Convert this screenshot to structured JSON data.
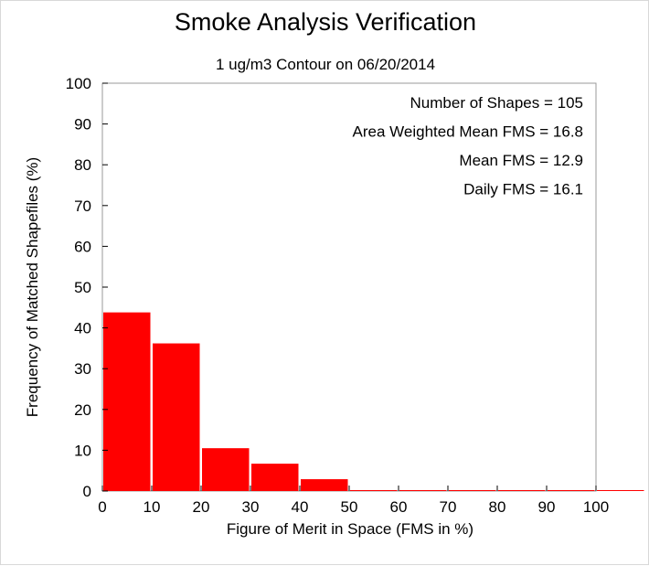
{
  "chart_data": {
    "type": "bar",
    "title": "Smoke Analysis Verification",
    "subtitle": "1 ug/m3 Contour on 06/20/2014",
    "xlabel": "Figure of Merit in Space (FMS in %)",
    "ylabel": "Frequency of Matched Shapefiles (%)",
    "xlim": [
      0,
      100
    ],
    "ylim": [
      0,
      100
    ],
    "xticks": [
      0,
      10,
      20,
      30,
      40,
      50,
      60,
      70,
      80,
      90,
      100
    ],
    "yticks": [
      0,
      10,
      20,
      30,
      40,
      50,
      60,
      70,
      80,
      90,
      100
    ],
    "bins": [
      [
        0,
        10
      ],
      [
        10,
        20
      ],
      [
        20,
        30
      ],
      [
        30,
        40
      ],
      [
        40,
        50
      ],
      [
        50,
        60
      ],
      [
        60,
        70
      ],
      [
        70,
        80
      ],
      [
        80,
        90
      ],
      [
        90,
        100
      ],
      [
        100,
        110
      ]
    ],
    "values": [
      43.8,
      36.2,
      10.5,
      6.7,
      2.9,
      0,
      0,
      0,
      0,
      0,
      0
    ],
    "bar_color": "#ff0000",
    "annotations": [
      "Number of Shapes = 105",
      "Area Weighted Mean FMS = 16.8",
      "Mean FMS = 12.9",
      "Daily FMS = 16.1"
    ],
    "grid": false
  }
}
